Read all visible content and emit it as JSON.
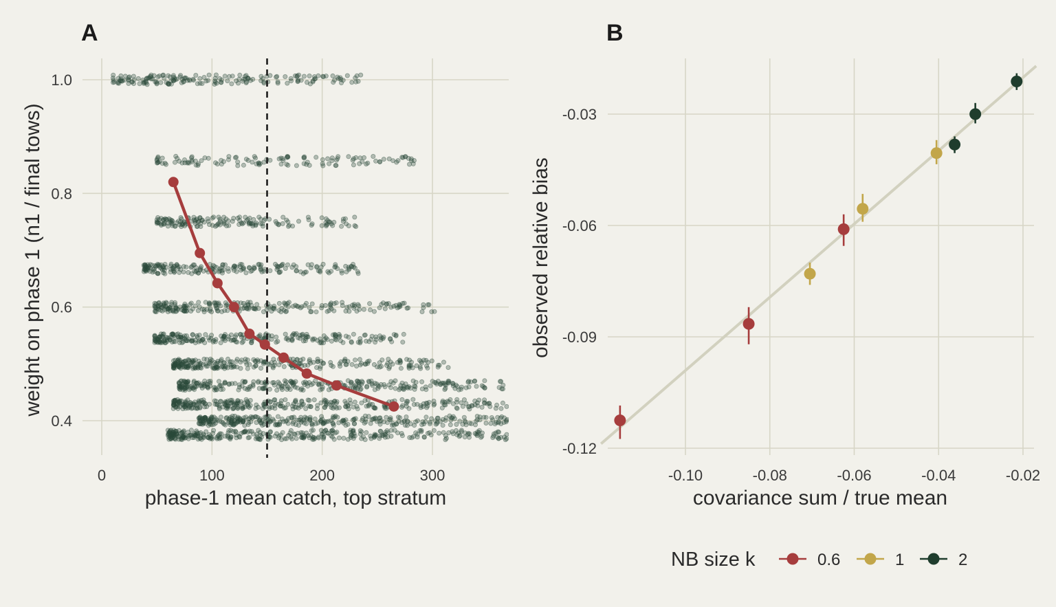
{
  "chart_data": [
    {
      "panel": "A",
      "type": "scatter",
      "title": "",
      "xlabel": "phase-1 mean catch, top stratum",
      "ylabel": "weight on phase 1 (n1 / final tows)",
      "xlim": [
        -5,
        368
      ],
      "ylim": [
        0.335,
        1.04
      ],
      "xticks": [
        0,
        100,
        200,
        300
      ],
      "xtick_labels": [
        "0",
        "100",
        "200",
        "300"
      ],
      "yticks": [
        0.4,
        0.6,
        0.8,
        1.0
      ],
      "ytick_labels": [
        "0.4",
        "0.6",
        "0.8",
        "1.0"
      ],
      "grid": true,
      "reference_line": {
        "axis": "x",
        "value": 150,
        "style": "dashed"
      },
      "scatter_levels": [
        {
          "y": 1.0,
          "x_range": [
            10,
            235
          ],
          "count": 180
        },
        {
          "y": 0.857,
          "x_range": [
            50,
            285
          ],
          "count": 120
        },
        {
          "y": 0.75,
          "x_range": [
            50,
            235
          ],
          "count": 160
        },
        {
          "y": 0.667,
          "x_range": [
            38,
            235
          ],
          "count": 200
        },
        {
          "y": 0.6,
          "x_range": [
            48,
            302
          ],
          "count": 230
        },
        {
          "y": 0.545,
          "x_range": [
            48,
            275
          ],
          "count": 240
        },
        {
          "y": 0.5,
          "x_range": [
            65,
            315
          ],
          "count": 280
        },
        {
          "y": 0.462,
          "x_range": [
            70,
            365
          ],
          "count": 300
        },
        {
          "y": 0.429,
          "x_range": [
            65,
            368
          ],
          "count": 320
        },
        {
          "y": 0.4,
          "x_range": [
            88,
            368
          ],
          "count": 320
        },
        {
          "y": 0.375,
          "x_range": [
            60,
            368
          ],
          "count": 340
        }
      ],
      "series": [
        {
          "x": [
            65,
            89,
            105,
            120,
            134,
            148,
            165,
            186,
            213,
            265
          ],
          "y": [
            0.82,
            0.695,
            0.642,
            0.6,
            0.553,
            0.534,
            0.511,
            0.483,
            0.462,
            0.425
          ]
        }
      ],
      "colors": {
        "points": "#2b4a3a",
        "line": "#a63d3d",
        "grid": "#d7d6c6"
      }
    },
    {
      "panel": "B",
      "type": "scatter",
      "title": "",
      "xlabel": "covariance sum / true mean",
      "ylabel": "observed relative bias",
      "xlim": [
        -0.12,
        -0.0185
      ],
      "ylim": [
        -0.1185,
        -0.0165
      ],
      "xticks": [
        -0.1,
        -0.08,
        -0.06,
        -0.04,
        -0.02
      ],
      "xtick_labels": [
        "-0.10",
        "-0.08",
        "-0.06",
        "-0.04",
        "-0.02"
      ],
      "yticks": [
        -0.12,
        -0.09,
        -0.06,
        -0.03
      ],
      "ytick_labels": [
        "-0.12",
        "-0.09",
        "-0.06",
        "-0.03"
      ],
      "grid": true,
      "reference_line": {
        "type": "identity",
        "x": [
          -0.12,
          -0.0185
        ],
        "y": [
          -0.1188,
          -0.0187
        ]
      },
      "series": [
        {
          "name": "0.6",
          "color": "#a63d3d",
          "points": [
            {
              "x": -0.1155,
              "y": -0.1125,
              "lo": -0.1175,
              "hi": -0.1085
            },
            {
              "x": -0.085,
              "y": -0.0865,
              "lo": -0.092,
              "hi": -0.082
            },
            {
              "x": -0.0625,
              "y": -0.061,
              "lo": -0.0655,
              "hi": -0.057
            }
          ]
        },
        {
          "name": "1",
          "color": "#c2a64a",
          "points": [
            {
              "x": -0.0705,
              "y": -0.073,
              "lo": -0.076,
              "hi": -0.07
            },
            {
              "x": -0.058,
              "y": -0.0555,
              "lo": -0.059,
              "hi": -0.0515
            },
            {
              "x": -0.0405,
              "y": -0.0405,
              "lo": -0.0435,
              "hi": -0.037
            }
          ]
        },
        {
          "name": "2",
          "color": "#1f3d2d",
          "points": [
            {
              "x": -0.0362,
              "y": -0.0382,
              "lo": -0.0405,
              "hi": -0.036
            },
            {
              "x": -0.0313,
              "y": -0.03,
              "lo": -0.0325,
              "hi": -0.027
            },
            {
              "x": -0.0215,
              "y": -0.0212,
              "lo": -0.0235,
              "hi": -0.019
            }
          ]
        }
      ],
      "legend": {
        "title": "NB size k",
        "placement": "bottom",
        "labels": [
          "0.6",
          "1",
          "2"
        ]
      }
    }
  ],
  "panel_labels": [
    "A",
    "B"
  ]
}
